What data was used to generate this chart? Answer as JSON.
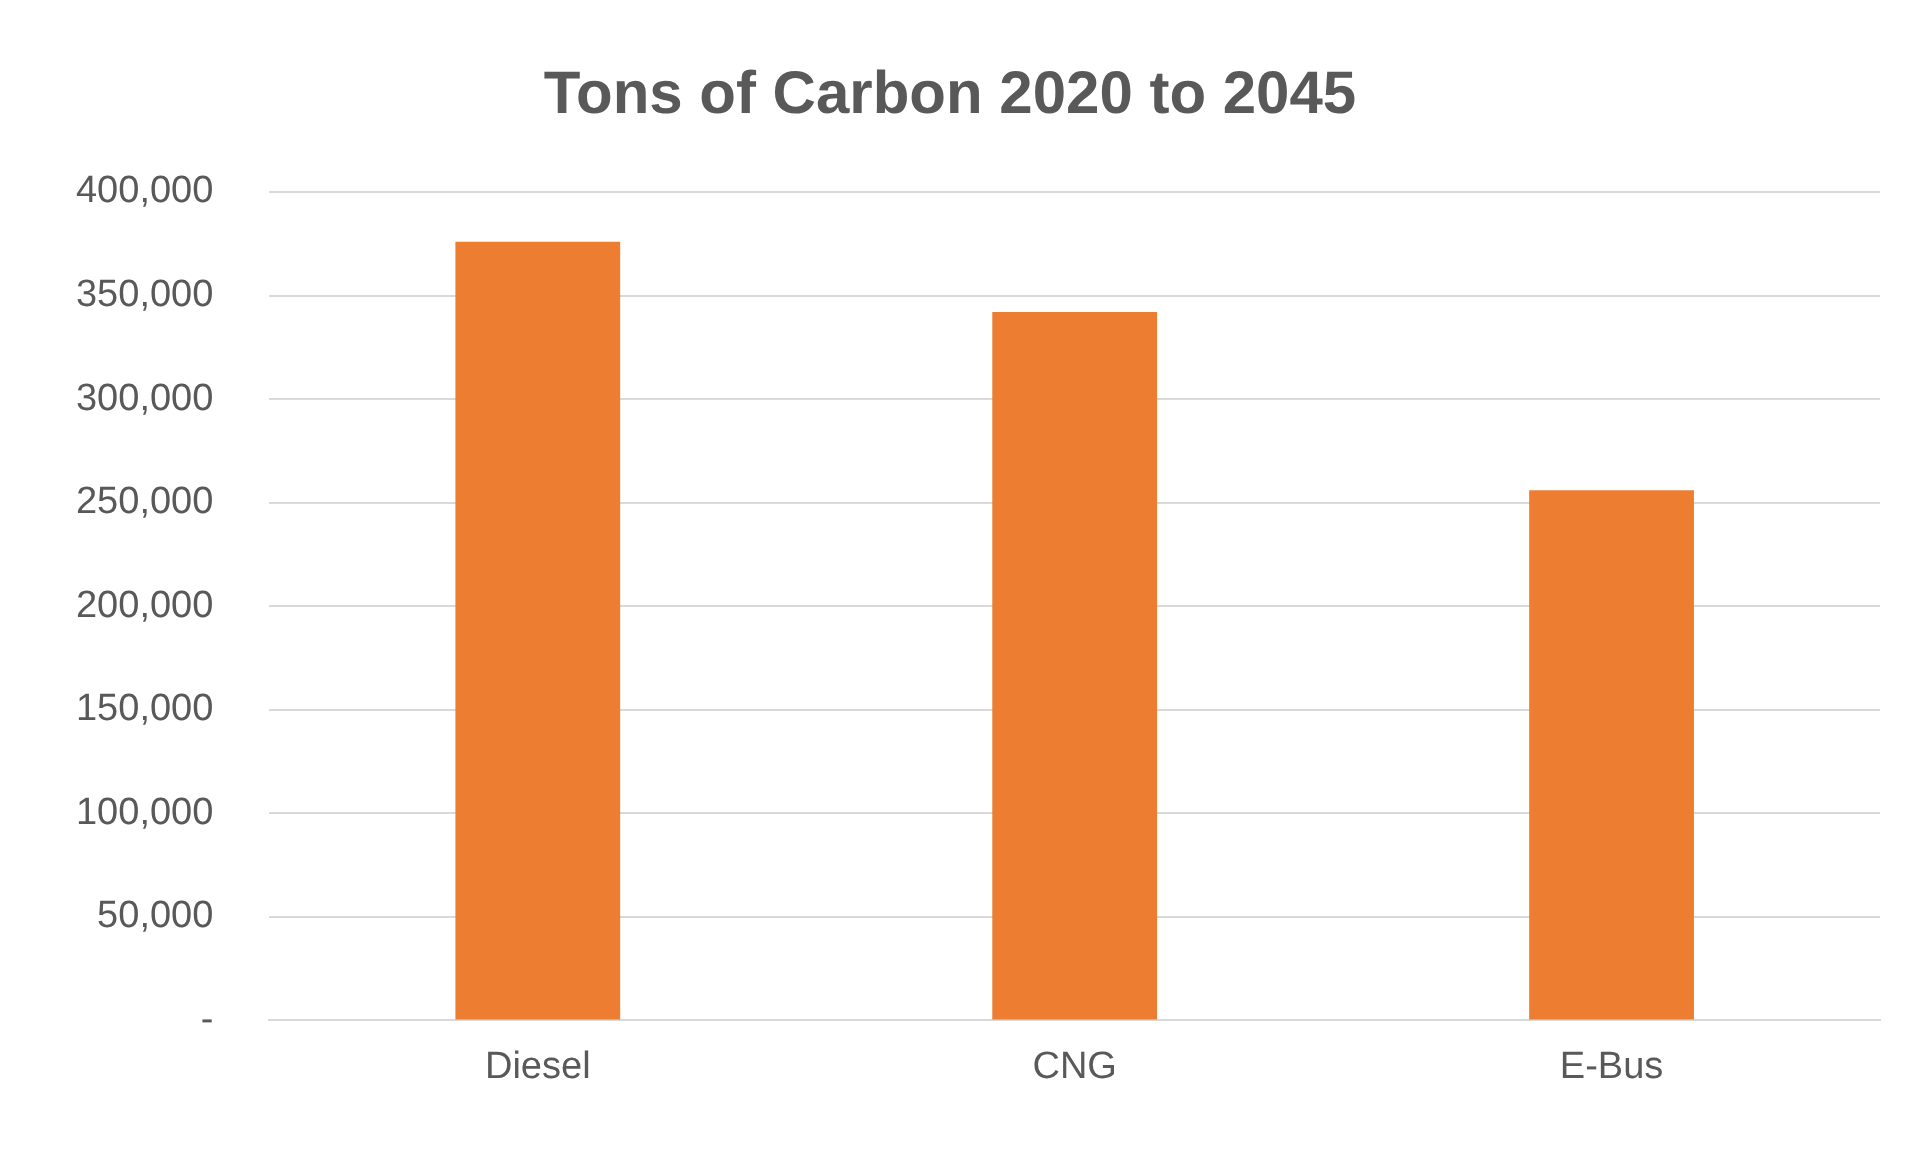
{
  "chart_data": {
    "type": "bar",
    "title": "Tons of Carbon 2020 to 2045",
    "categories": [
      "Diesel",
      "CNG",
      "E-Bus"
    ],
    "values": [
      376000,
      342000,
      256000
    ],
    "color": "#ed7d31",
    "ylim": [
      0,
      400000
    ],
    "yticks": [
      {
        "value": 0,
        "label": "-"
      },
      {
        "value": 50000,
        "label": "50,000"
      },
      {
        "value": 100000,
        "label": "100,000"
      },
      {
        "value": 150000,
        "label": "150,000"
      },
      {
        "value": 200000,
        "label": "200,000"
      },
      {
        "value": 250000,
        "label": "250,000"
      },
      {
        "value": 300000,
        "label": "300,000"
      },
      {
        "value": 350000,
        "label": "350,000"
      },
      {
        "value": 400000,
        "label": "400,000"
      }
    ],
    "grid": "y",
    "legend": false
  }
}
